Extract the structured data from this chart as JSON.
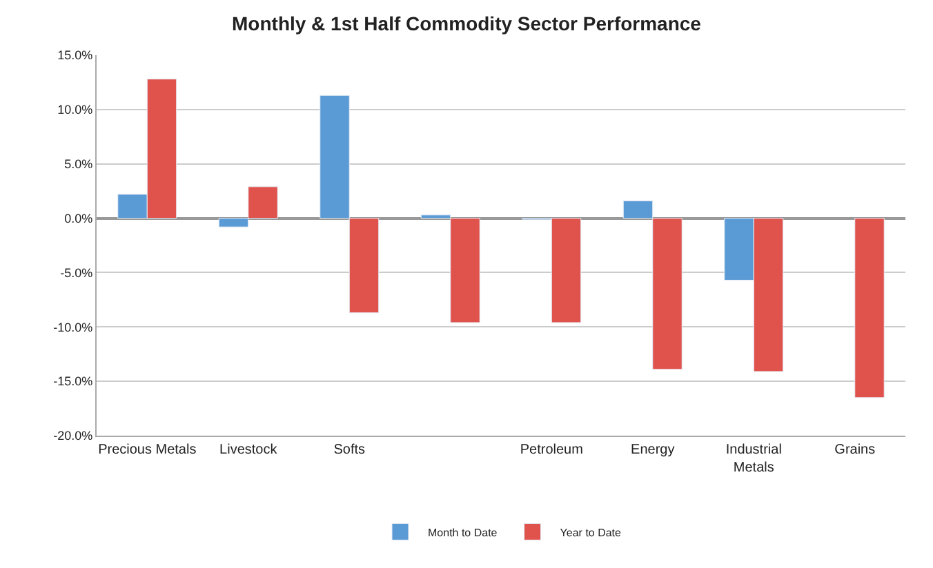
{
  "chart_data": {
    "type": "bar",
    "title": "Monthly & 1st Half Commodity Sector Performance",
    "categories": [
      "Precious Metals",
      "Livestock",
      "Softs",
      null,
      "Petroleum",
      "Energy",
      "Industrial\nMetals",
      "Grains"
    ],
    "series": [
      {
        "name": "Month to Date",
        "color": "#5b9bd5",
        "values": [
          2.2,
          -0.8,
          11.3,
          0.3,
          -0.1,
          1.6,
          -5.7,
          null
        ]
      },
      {
        "name": "Year to Date",
        "color": "#e0534d",
        "values": [
          12.8,
          2.9,
          -8.7,
          -9.6,
          -9.6,
          -13.9,
          -14.1,
          -16.5
        ]
      }
    ],
    "ylim": [
      -20,
      15
    ],
    "yticks": [
      {
        "value": -20,
        "label": "-20.0%"
      },
      {
        "value": -15,
        "label": "-15.0%"
      },
      {
        "value": -10,
        "label": "-10.0%"
      },
      {
        "value": -5,
        "label": "-5.0%"
      },
      {
        "value": 0,
        "label": "0.0%"
      },
      {
        "value": 5,
        "label": "5.0%"
      },
      {
        "value": 10,
        "label": "10.0%"
      },
      {
        "value": 15,
        "label": "15.0%"
      }
    ],
    "grid": "y",
    "legend": "bottom"
  }
}
